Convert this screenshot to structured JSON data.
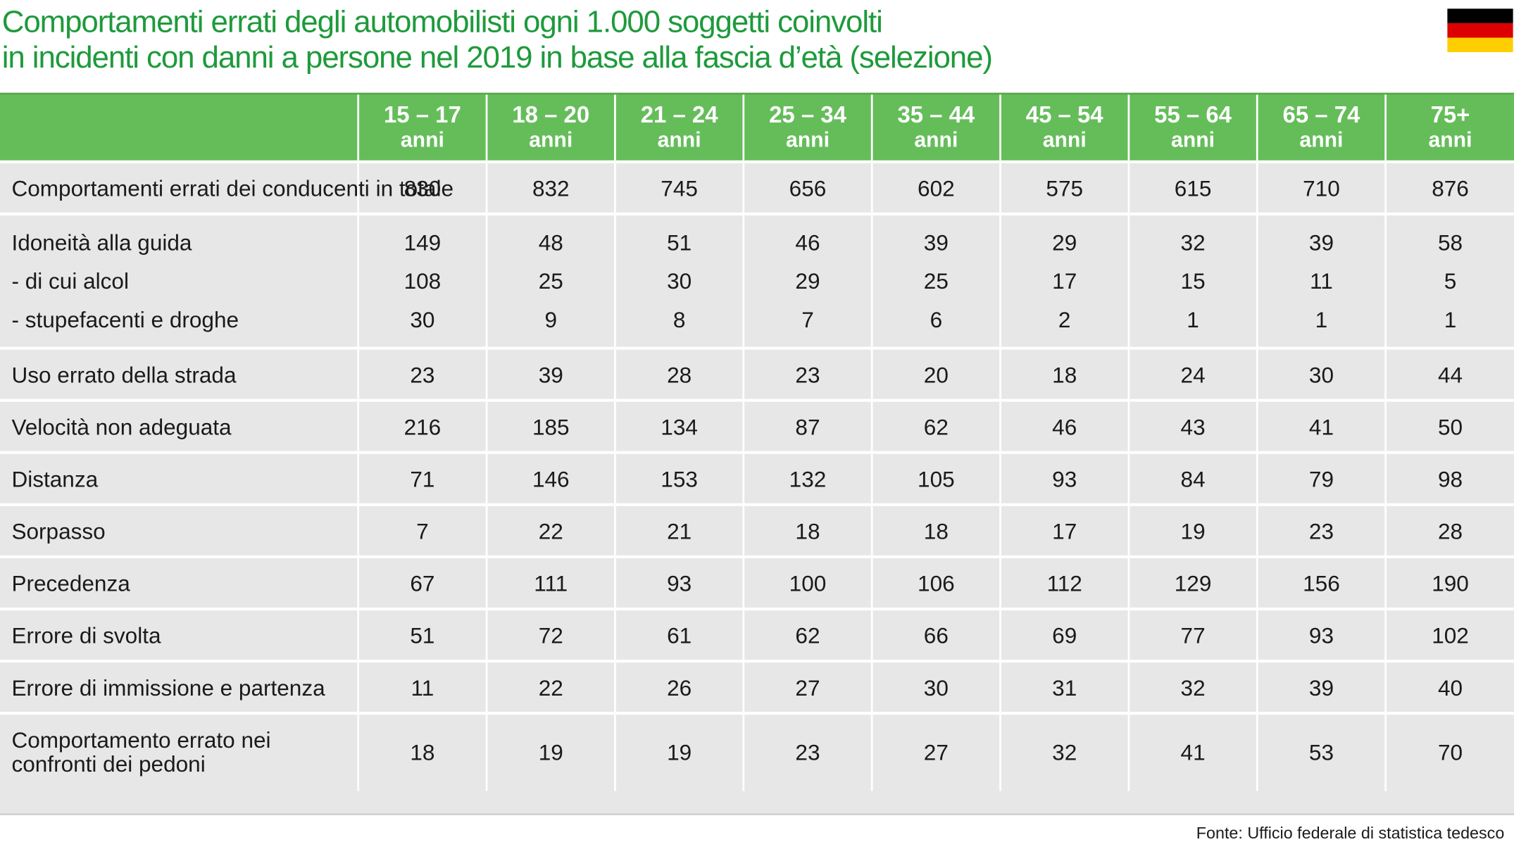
{
  "title_lines": [
    "Comportamenti errati degli automobilisti ogni 1.000 soggetti coinvolti",
    "in incidenti con danni a persone nel 2019 in base alla fascia d’età (selezione)"
  ],
  "flag": {
    "colors": [
      "#000000",
      "#dd0000",
      "#ffce00"
    ],
    "icon": "germany-flag-icon"
  },
  "colors": {
    "title": "#1e9a3c",
    "header_bg": "#65bd5a",
    "row_bg": "#e7e7e7"
  },
  "source": "Fonte: Ufficio federale di statistica tedesco",
  "chart_data": {
    "type": "table",
    "title": "Comportamenti errati degli automobilisti ogni 1.000 soggetti coinvolti in incidenti con danni a persone nel 2019 in base alla fascia d’età (selezione)",
    "columns": [
      {
        "range": "15 – 17",
        "unit": "anni"
      },
      {
        "range": "18 – 20",
        "unit": "anni"
      },
      {
        "range": "21 – 24",
        "unit": "anni"
      },
      {
        "range": "25 – 34",
        "unit": "anni"
      },
      {
        "range": "35 – 44",
        "unit": "anni"
      },
      {
        "range": "45 – 54",
        "unit": "anni"
      },
      {
        "range": "55 – 64",
        "unit": "anni"
      },
      {
        "range": "65 – 74",
        "unit": "anni"
      },
      {
        "range": "75+",
        "unit": "anni"
      }
    ],
    "groups": [
      {
        "rows": [
          {
            "label": "Comportamenti errati dei conducenti in totale",
            "values": [
              830,
              832,
              745,
              656,
              602,
              575,
              615,
              710,
              876
            ]
          }
        ]
      },
      {
        "rows": [
          {
            "label": "Idoneità alla guida",
            "values": [
              149,
              48,
              51,
              46,
              39,
              29,
              32,
              39,
              58
            ]
          },
          {
            "label": "- di cui alcol",
            "values": [
              108,
              25,
              30,
              29,
              25,
              17,
              15,
              11,
              5
            ]
          },
          {
            "label": "- stupefacenti e droghe",
            "values": [
              30,
              9,
              8,
              7,
              6,
              2,
              1,
              1,
              1
            ]
          }
        ]
      },
      {
        "rows": [
          {
            "label": "Uso errato della strada",
            "values": [
              23,
              39,
              28,
              23,
              20,
              18,
              24,
              30,
              44
            ]
          }
        ]
      },
      {
        "rows": [
          {
            "label": "Velocità non adeguata",
            "values": [
              216,
              185,
              134,
              87,
              62,
              46,
              43,
              41,
              50
            ]
          }
        ]
      },
      {
        "rows": [
          {
            "label": "Distanza",
            "values": [
              71,
              146,
              153,
              132,
              105,
              93,
              84,
              79,
              98
            ]
          }
        ]
      },
      {
        "rows": [
          {
            "label": "Sorpasso",
            "values": [
              7,
              22,
              21,
              18,
              18,
              17,
              19,
              23,
              28
            ]
          }
        ]
      },
      {
        "rows": [
          {
            "label": "Precedenza",
            "values": [
              67,
              111,
              93,
              100,
              106,
              112,
              129,
              156,
              190
            ]
          }
        ]
      },
      {
        "rows": [
          {
            "label": "Errore di svolta",
            "values": [
              51,
              72,
              61,
              62,
              66,
              69,
              77,
              93,
              102
            ]
          }
        ]
      },
      {
        "rows": [
          {
            "label": "Errore di immissione e partenza",
            "values": [
              11,
              22,
              26,
              27,
              30,
              31,
              32,
              39,
              40
            ]
          }
        ]
      },
      {
        "rows": [
          {
            "label_lines": [
              "Comportamento errato nei",
              "confronti dei pedoni"
            ],
            "values": [
              18,
              19,
              19,
              23,
              27,
              32,
              41,
              53,
              70
            ]
          }
        ]
      }
    ]
  }
}
